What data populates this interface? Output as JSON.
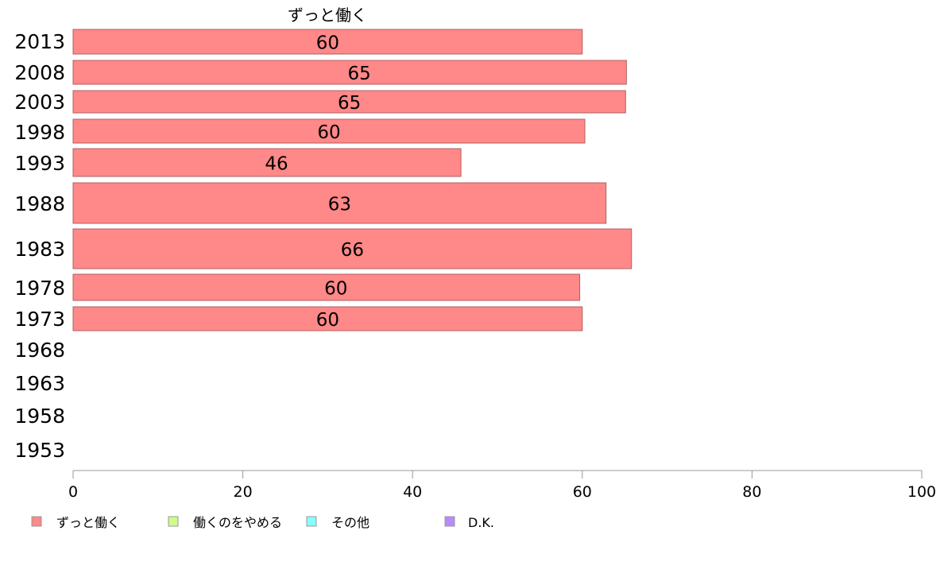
{
  "chart_data": {
    "type": "bar",
    "orientation": "horizontal",
    "title": "ずっと働く",
    "categories": [
      "2013",
      "2008",
      "2003",
      "1998",
      "1993",
      "1988",
      "1983",
      "1978",
      "1973",
      "1968",
      "1963",
      "1958",
      "1953"
    ],
    "series": [
      {
        "name": "ずっと働く",
        "color": "#ff8888",
        "values": [
          60,
          65.2,
          65.1,
          60.3,
          45.7,
          62.8,
          65.8,
          59.7,
          60.0,
          null,
          null,
          null,
          null
        ],
        "labels": [
          "60",
          "65",
          "65",
          "60",
          "46",
          "63",
          "66",
          "60",
          "60",
          "",
          "",
          "",
          ""
        ]
      }
    ],
    "xlim": [
      0,
      100
    ],
    "xticks": [
      "0",
      "20",
      "40",
      "60",
      "80",
      "100"
    ],
    "legend": [
      {
        "label": "ずっと働く",
        "color": "#ff8888"
      },
      {
        "label": "働くのをやめる",
        "color": "#ccff88"
      },
      {
        "label": "その他",
        "color": "#88ffff"
      },
      {
        "label": "D.K.",
        "color": "#bb88ff"
      }
    ],
    "legend_position": "bottom-left",
    "grid": false
  }
}
